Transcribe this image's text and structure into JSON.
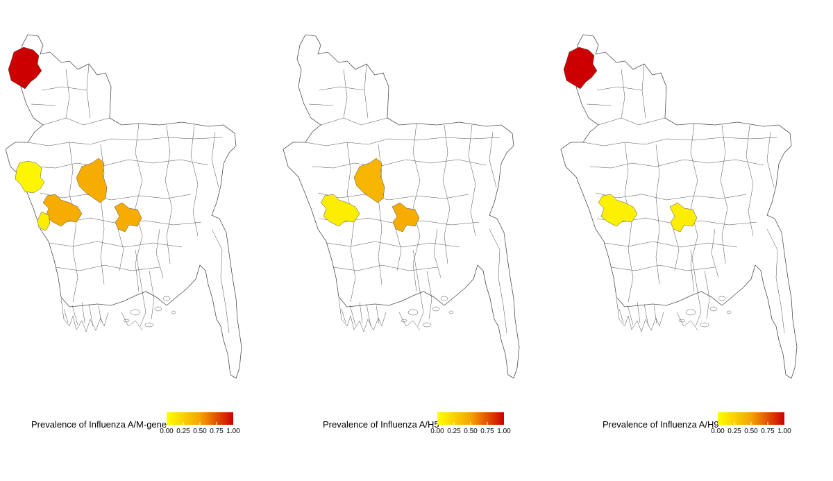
{
  "colors": {
    "outline": "#4d4d4d",
    "scale_low": "#ffff00",
    "scale_mid": "#f5a300",
    "scale_high": "#cc0000"
  },
  "panels": [
    {
      "legend_title": "Prevalence of Influenza A/M-gene",
      "highlighted": [
        {
          "region": "northwest-district",
          "value": 1.0
        },
        {
          "region": "west-district",
          "value": 0.05
        },
        {
          "region": "west-central-district",
          "value": 0.45
        },
        {
          "region": "southwest-district",
          "value": 0.1
        },
        {
          "region": "central-district",
          "value": 0.45
        },
        {
          "region": "south-central-district",
          "value": 0.45
        }
      ]
    },
    {
      "legend_title": "Prevalence of Influenza A/H5",
      "highlighted": [
        {
          "region": "west-central-district",
          "value": 0.1
        },
        {
          "region": "central-district",
          "value": 0.4
        },
        {
          "region": "south-central-district",
          "value": 0.45
        }
      ]
    },
    {
      "legend_title": "Prevalence of Influenza A/H9",
      "highlighted": [
        {
          "region": "northwest-district",
          "value": 1.0
        },
        {
          "region": "west-central-district",
          "value": 0.08
        },
        {
          "region": "south-central-district",
          "value": 0.1
        }
      ]
    }
  ],
  "legend_ticks": [
    "0.00",
    "0.25",
    "0.50",
    "0.75",
    "1.00"
  ]
}
